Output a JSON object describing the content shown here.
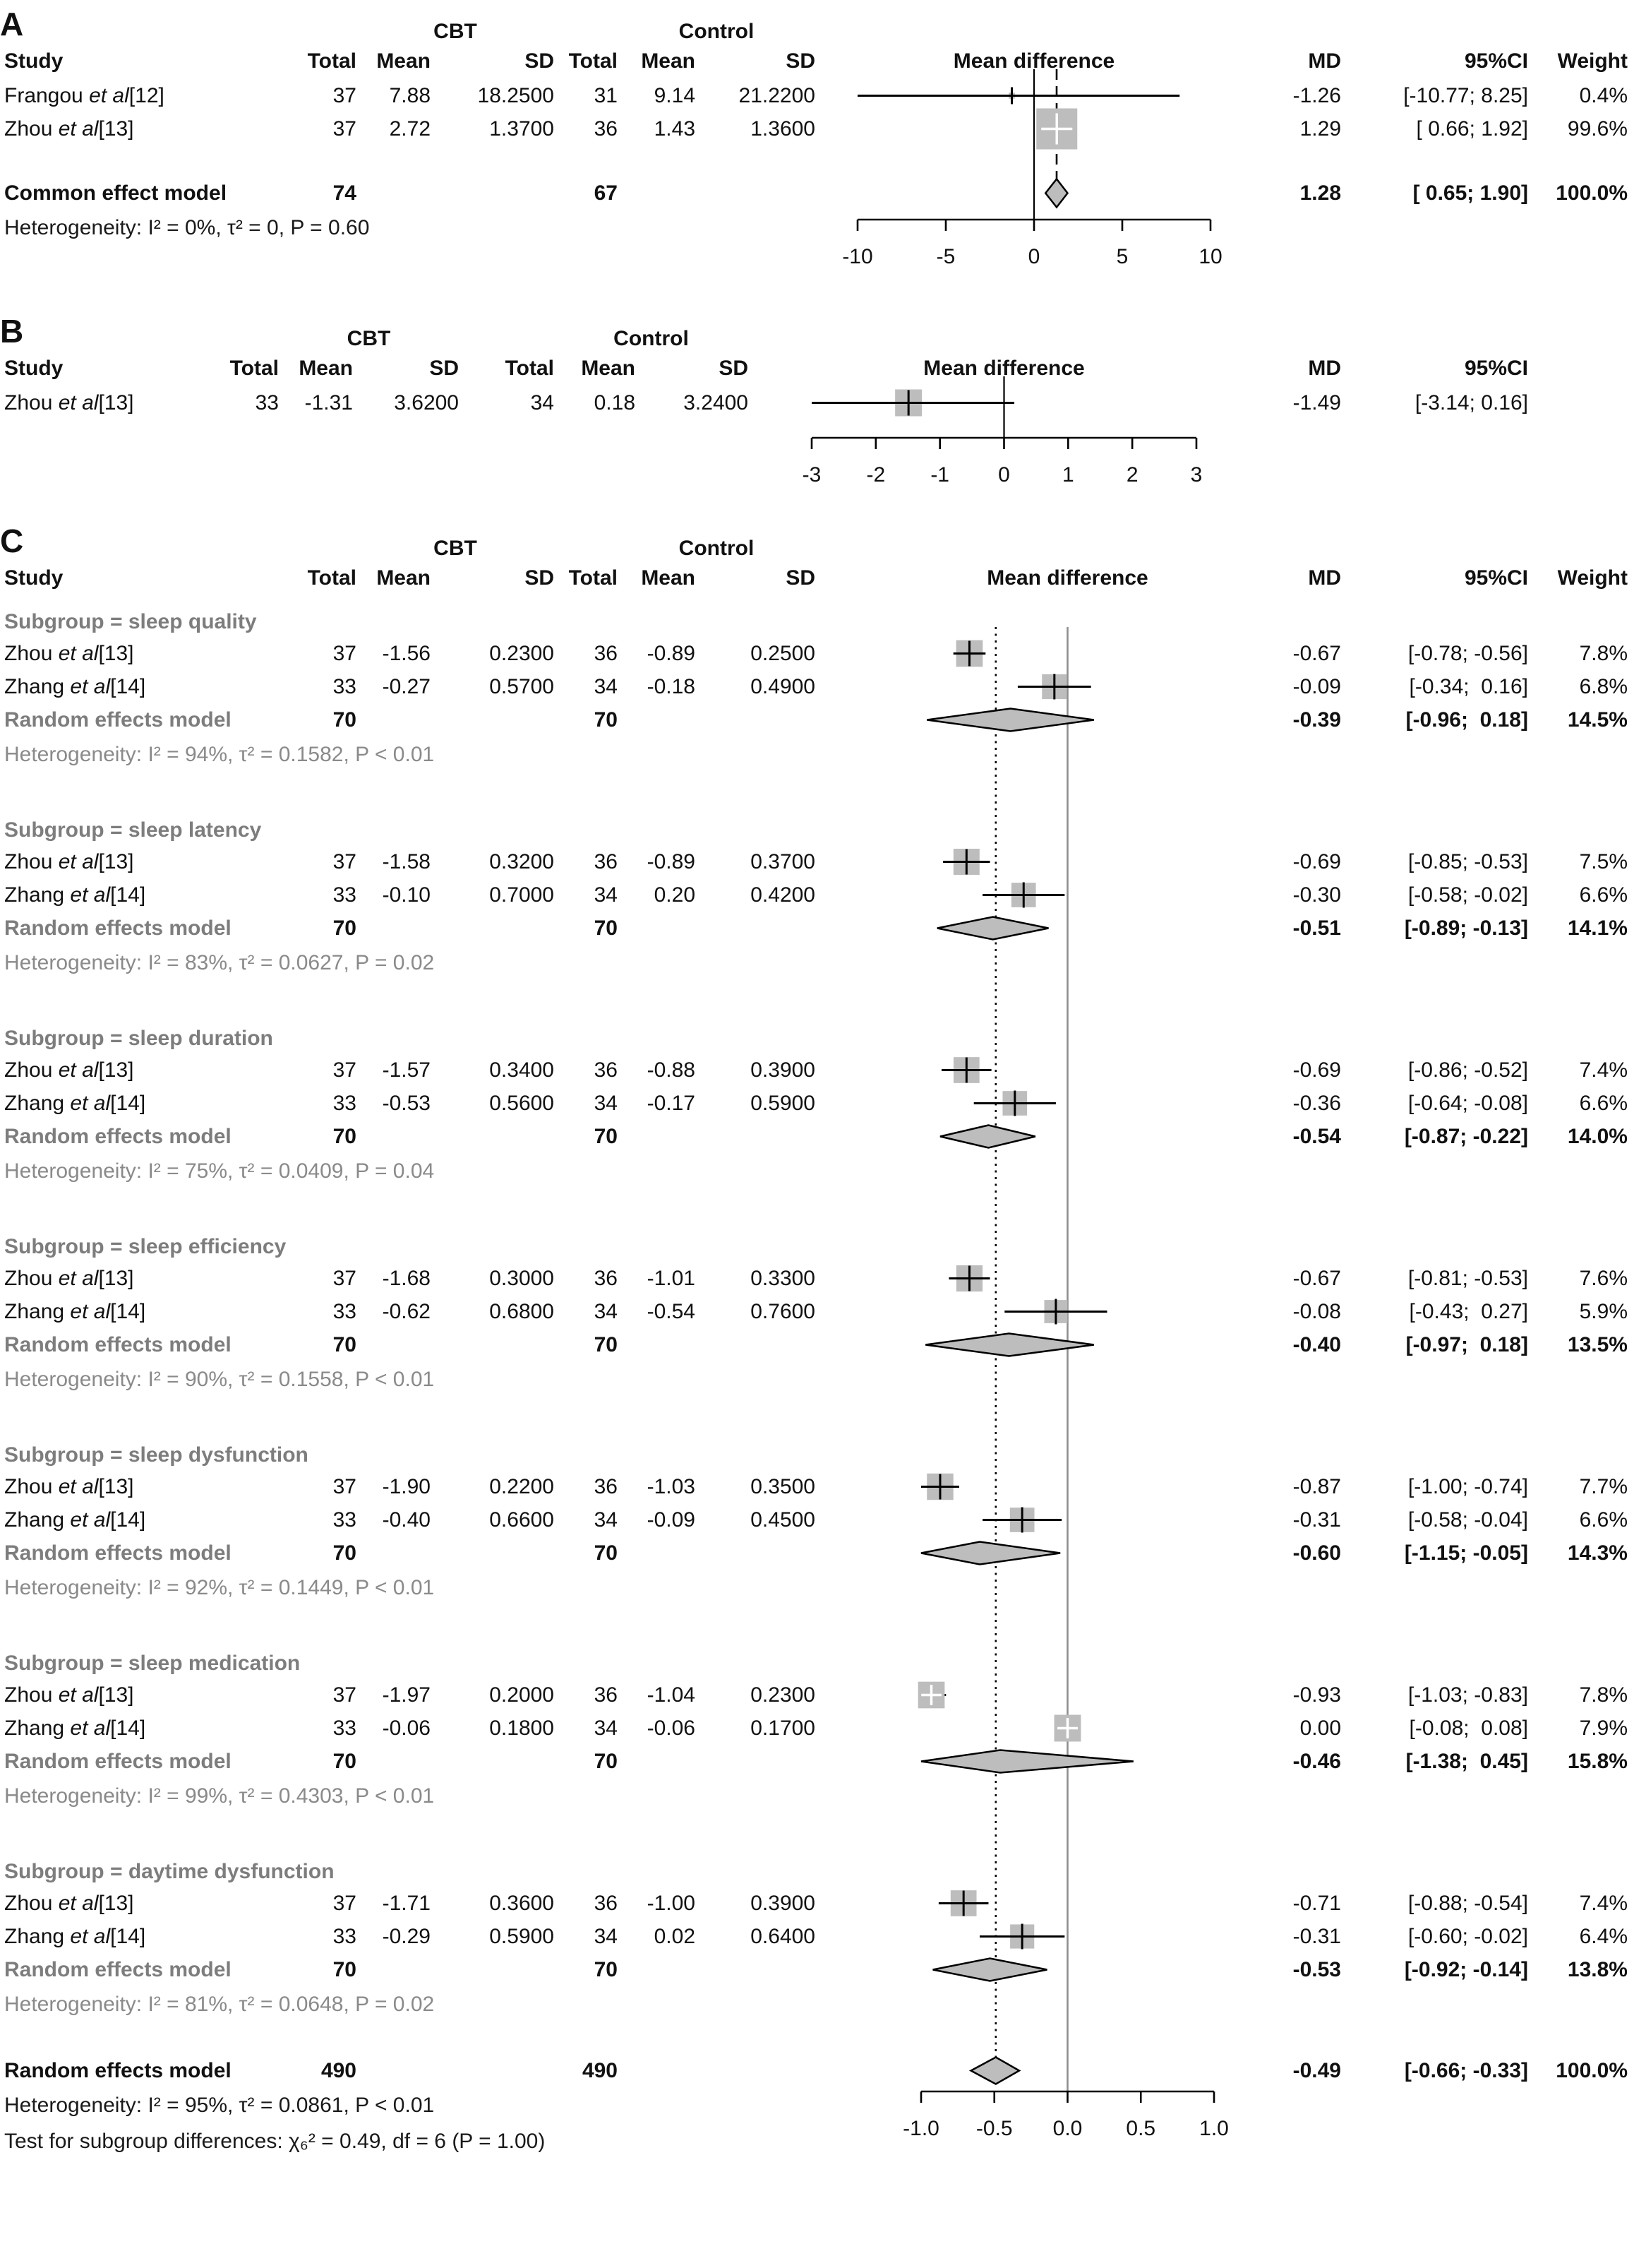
{
  "groups": [
    "CBT",
    "Control"
  ],
  "columns": {
    "study": "Study",
    "total": "Total",
    "mean": "Mean",
    "sd": "SD",
    "mean_difference": "Mean difference",
    "md": "MD",
    "ci": "95%CI",
    "weight": "Weight"
  },
  "colors": {
    "square": "#bdbdbd",
    "diamond": "#bdbdbd",
    "ci_line": "#000000",
    "zero_line_panel_c": "#8f8f8f",
    "subgroup_text": "#7d7d7d",
    "heterogeneity_text": "#8a8a8a"
  },
  "chart_data": [
    {
      "type": "forest",
      "panel": "A",
      "panel_label": "A",
      "has_weight": true,
      "axis": {
        "min": -10,
        "max": 10,
        "zero": 0,
        "ticks": [
          {
            "v": -10,
            "t": "-10"
          },
          {
            "v": -5,
            "t": "-5"
          },
          {
            "v": 0,
            "t": "0"
          },
          {
            "v": 5,
            "t": "5"
          },
          {
            "v": 10,
            "t": "10"
          }
        ],
        "overall_line": {
          "value": 1.28,
          "style": "dashed"
        }
      },
      "rows": [
        {
          "kind": "study",
          "pre": "Frangou ",
          "it": "et al",
          "post": "[12]",
          "n1": "37",
          "mean1": "7.88",
          "sd1": "18.2500",
          "n2": "31",
          "mean2": "9.14",
          "sd2": "21.2200",
          "md": -1.26,
          "lo": -10.77,
          "hi": 8.25,
          "md_text": "-1.26",
          "ci_text": "[-10.77; 8.25]",
          "weight": 0.4,
          "weight_text": "0.4%"
        },
        {
          "kind": "study",
          "pre": "Zhou ",
          "it": "et al",
          "post": "[13]",
          "n1": "37",
          "mean1": "2.72",
          "sd1": "1.3700",
          "n2": "36",
          "mean2": "1.43",
          "sd2": "1.3600",
          "md": 1.29,
          "lo": 0.66,
          "hi": 1.92,
          "md_text": "1.29",
          "ci_text": "[ 0.66; 1.92]",
          "weight": 99.6,
          "weight_text": "99.6%"
        },
        {
          "kind": "gap"
        },
        {
          "kind": "summary",
          "final": true,
          "label": "Common effect model",
          "n1": "74",
          "n2": "67",
          "md": 1.28,
          "lo": 0.65,
          "hi": 1.9,
          "md_text": "1.28",
          "ci_text": "[ 0.65; 1.90]",
          "weight_text": "100.0%"
        },
        {
          "kind": "het",
          "final": true,
          "text": "Heterogeneity: I² = 0%, τ² = 0, P = 0.60"
        }
      ]
    },
    {
      "type": "forest",
      "panel": "B",
      "panel_label": "B",
      "has_weight": false,
      "axis": {
        "min": -3,
        "max": 3,
        "zero": 0,
        "ticks": [
          {
            "v": -3,
            "t": "-3"
          },
          {
            "v": -2,
            "t": "-2"
          },
          {
            "v": -1,
            "t": "-1"
          },
          {
            "v": 0,
            "t": "0"
          },
          {
            "v": 1,
            "t": "1"
          },
          {
            "v": 2,
            "t": "2"
          },
          {
            "v": 3,
            "t": "3"
          }
        ],
        "overall_line": null
      },
      "rows": [
        {
          "kind": "study",
          "pre": "Zhou ",
          "it": "et al",
          "post": "[13]",
          "n1": "33",
          "mean1": "-1.31",
          "sd1": "3.6200",
          "n2": "34",
          "mean2": "0.18",
          "sd2": "3.2400",
          "md": -1.49,
          "lo": -3.14,
          "hi": 0.16,
          "md_text": "-1.49",
          "ci_text": "[-3.14; 0.16]",
          "weight": null,
          "weight_text": ""
        },
        {
          "kind": "axisgap"
        }
      ]
    },
    {
      "type": "forest",
      "panel": "C",
      "panel_label": "C",
      "has_weight": true,
      "axis": {
        "min": -1,
        "max": 1,
        "zero": 0,
        "ticks": [
          {
            "v": -1,
            "t": "-1.0"
          },
          {
            "v": -0.5,
            "t": "-0.5"
          },
          {
            "v": 0,
            "t": "0.0"
          },
          {
            "v": 0.5,
            "t": "0.5"
          },
          {
            "v": 1,
            "t": "1.0"
          }
        ],
        "overall_line": {
          "value": -0.49,
          "style": "dotted"
        }
      },
      "rows": [
        {
          "kind": "subgroup",
          "label": "Subgroup = sleep quality"
        },
        {
          "kind": "study",
          "pre": "Zhou ",
          "it": "et al",
          "post": "[13]",
          "n1": "37",
          "mean1": "-1.56",
          "sd1": "0.2300",
          "n2": "36",
          "mean2": "-0.89",
          "sd2": "0.2500",
          "md": -0.67,
          "lo": -0.78,
          "hi": -0.56,
          "md_text": "-0.67",
          "ci_text": "[-0.78; -0.56]",
          "weight": 7.8,
          "weight_text": "7.8%"
        },
        {
          "kind": "study",
          "pre": "Zhang ",
          "it": "et al",
          "post": "[14]",
          "n1": "33",
          "mean1": "-0.27",
          "sd1": "0.5700",
          "n2": "34",
          "mean2": "-0.18",
          "sd2": "0.4900",
          "md": -0.09,
          "lo": -0.34,
          "hi": 0.16,
          "md_text": "-0.09",
          "ci_text": "[-0.34;  0.16]",
          "weight": 6.8,
          "weight_text": "6.8%"
        },
        {
          "kind": "summary",
          "final": false,
          "label": "Random effects model",
          "n1": "70",
          "n2": "70",
          "md": -0.39,
          "lo": -0.96,
          "hi": 0.18,
          "md_text": "-0.39",
          "ci_text": "[-0.96;  0.18]",
          "weight_text": "14.5%"
        },
        {
          "kind": "het",
          "final": false,
          "text": "Heterogeneity: I² = 94%, τ² = 0.1582, P < 0.01"
        },
        {
          "kind": "gap"
        },
        {
          "kind": "subgroup",
          "label": "Subgroup = sleep latency"
        },
        {
          "kind": "study",
          "pre": "Zhou ",
          "it": "et al",
          "post": "[13]",
          "n1": "37",
          "mean1": "-1.58",
          "sd1": "0.3200",
          "n2": "36",
          "mean2": "-0.89",
          "sd2": "0.3700",
          "md": -0.69,
          "lo": -0.85,
          "hi": -0.53,
          "md_text": "-0.69",
          "ci_text": "[-0.85; -0.53]",
          "weight": 7.5,
          "weight_text": "7.5%"
        },
        {
          "kind": "study",
          "pre": "Zhang ",
          "it": "et al",
          "post": "[14]",
          "n1": "33",
          "mean1": "-0.10",
          "sd1": "0.7000",
          "n2": "34",
          "mean2": "0.20",
          "sd2": "0.4200",
          "md": -0.3,
          "lo": -0.58,
          "hi": -0.02,
          "md_text": "-0.30",
          "ci_text": "[-0.58; -0.02]",
          "weight": 6.6,
          "weight_text": "6.6%"
        },
        {
          "kind": "summary",
          "final": false,
          "label": "Random effects model",
          "n1": "70",
          "n2": "70",
          "md": -0.51,
          "lo": -0.89,
          "hi": -0.13,
          "md_text": "-0.51",
          "ci_text": "[-0.89; -0.13]",
          "weight_text": "14.1%"
        },
        {
          "kind": "het",
          "final": false,
          "text": "Heterogeneity: I² = 83%, τ² = 0.0627, P = 0.02"
        },
        {
          "kind": "gap"
        },
        {
          "kind": "subgroup",
          "label": "Subgroup = sleep duration"
        },
        {
          "kind": "study",
          "pre": "Zhou ",
          "it": "et al",
          "post": "[13]",
          "n1": "37",
          "mean1": "-1.57",
          "sd1": "0.3400",
          "n2": "36",
          "mean2": "-0.88",
          "sd2": "0.3900",
          "md": -0.69,
          "lo": -0.86,
          "hi": -0.52,
          "md_text": "-0.69",
          "ci_text": "[-0.86; -0.52]",
          "weight": 7.4,
          "weight_text": "7.4%"
        },
        {
          "kind": "study",
          "pre": "Zhang ",
          "it": "et al",
          "post": "[14]",
          "n1": "33",
          "mean1": "-0.53",
          "sd1": "0.5600",
          "n2": "34",
          "mean2": "-0.17",
          "sd2": "0.5900",
          "md": -0.36,
          "lo": -0.64,
          "hi": -0.08,
          "md_text": "-0.36",
          "ci_text": "[-0.64; -0.08]",
          "weight": 6.6,
          "weight_text": "6.6%"
        },
        {
          "kind": "summary",
          "final": false,
          "label": "Random effects model",
          "n1": "70",
          "n2": "70",
          "md": -0.54,
          "lo": -0.87,
          "hi": -0.22,
          "md_text": "-0.54",
          "ci_text": "[-0.87; -0.22]",
          "weight_text": "14.0%"
        },
        {
          "kind": "het",
          "final": false,
          "text": "Heterogeneity: I² = 75%, τ² = 0.0409, P = 0.04"
        },
        {
          "kind": "gap"
        },
        {
          "kind": "subgroup",
          "label": "Subgroup = sleep efficiency"
        },
        {
          "kind": "study",
          "pre": "Zhou ",
          "it": "et al",
          "post": "[13]",
          "n1": "37",
          "mean1": "-1.68",
          "sd1": "0.3000",
          "n2": "36",
          "mean2": "-1.01",
          "sd2": "0.3300",
          "md": -0.67,
          "lo": -0.81,
          "hi": -0.53,
          "md_text": "-0.67",
          "ci_text": "[-0.81; -0.53]",
          "weight": 7.6,
          "weight_text": "7.6%"
        },
        {
          "kind": "study",
          "pre": "Zhang ",
          "it": "et al",
          "post": "[14]",
          "n1": "33",
          "mean1": "-0.62",
          "sd1": "0.6800",
          "n2": "34",
          "mean2": "-0.54",
          "sd2": "0.7600",
          "md": -0.08,
          "lo": -0.43,
          "hi": 0.27,
          "md_text": "-0.08",
          "ci_text": "[-0.43;  0.27]",
          "weight": 5.9,
          "weight_text": "5.9%"
        },
        {
          "kind": "summary",
          "final": false,
          "label": "Random effects model",
          "n1": "70",
          "n2": "70",
          "md": -0.4,
          "lo": -0.97,
          "hi": 0.18,
          "md_text": "-0.40",
          "ci_text": "[-0.97;  0.18]",
          "weight_text": "13.5%"
        },
        {
          "kind": "het",
          "final": false,
          "text": "Heterogeneity: I² = 90%, τ² = 0.1558, P < 0.01"
        },
        {
          "kind": "gap"
        },
        {
          "kind": "subgroup",
          "label": "Subgroup = sleep dysfunction"
        },
        {
          "kind": "study",
          "pre": "Zhou ",
          "it": "et al",
          "post": "[13]",
          "n1": "37",
          "mean1": "-1.90",
          "sd1": "0.2200",
          "n2": "36",
          "mean2": "-1.03",
          "sd2": "0.3500",
          "md": -0.87,
          "lo": -1.0,
          "hi": -0.74,
          "md_text": "-0.87",
          "ci_text": "[-1.00; -0.74]",
          "weight": 7.7,
          "weight_text": "7.7%"
        },
        {
          "kind": "study",
          "pre": "Zhang ",
          "it": "et al",
          "post": "[14]",
          "n1": "33",
          "mean1": "-0.40",
          "sd1": "0.6600",
          "n2": "34",
          "mean2": "-0.09",
          "sd2": "0.4500",
          "md": -0.31,
          "lo": -0.58,
          "hi": -0.04,
          "md_text": "-0.31",
          "ci_text": "[-0.58; -0.04]",
          "weight": 6.6,
          "weight_text": "6.6%"
        },
        {
          "kind": "summary",
          "final": false,
          "label": "Random effects model",
          "n1": "70",
          "n2": "70",
          "md": -0.6,
          "lo": -1.15,
          "hi": -0.05,
          "md_text": "-0.60",
          "ci_text": "[-1.15; -0.05]",
          "weight_text": "14.3%"
        },
        {
          "kind": "het",
          "final": false,
          "text": "Heterogeneity: I² = 92%, τ² = 0.1449, P < 0.01"
        },
        {
          "kind": "gap"
        },
        {
          "kind": "subgroup",
          "label": "Subgroup = sleep medication"
        },
        {
          "kind": "study",
          "pre": "Zhou ",
          "it": "et al",
          "post": "[13]",
          "n1": "37",
          "mean1": "-1.97",
          "sd1": "0.2000",
          "n2": "36",
          "mean2": "-1.04",
          "sd2": "0.2300",
          "md": -0.93,
          "lo": -1.03,
          "hi": -0.83,
          "md_text": "-0.93",
          "ci_text": "[-1.03; -0.83]",
          "weight": 7.8,
          "weight_text": "7.8%"
        },
        {
          "kind": "study",
          "pre": "Zhang ",
          "it": "et al",
          "post": "[14]",
          "n1": "33",
          "mean1": "-0.06",
          "sd1": "0.1800",
          "n2": "34",
          "mean2": "-0.06",
          "sd2": "0.1700",
          "md": 0.0,
          "lo": -0.08,
          "hi": 0.08,
          "md_text": "0.00",
          "ci_text": "[-0.08;  0.08]",
          "weight": 7.9,
          "weight_text": "7.9%"
        },
        {
          "kind": "summary",
          "final": false,
          "label": "Random effects model",
          "n1": "70",
          "n2": "70",
          "md": -0.46,
          "lo": -1.38,
          "hi": 0.45,
          "md_text": "-0.46",
          "ci_text": "[-1.38;  0.45]",
          "weight_text": "15.8%"
        },
        {
          "kind": "het",
          "final": false,
          "text": "Heterogeneity: I² = 99%, τ² = 0.4303, P < 0.01"
        },
        {
          "kind": "gap"
        },
        {
          "kind": "subgroup",
          "label": "Subgroup = daytime dysfunction"
        },
        {
          "kind": "study",
          "pre": "Zhou ",
          "it": "et al",
          "post": "[13]",
          "n1": "37",
          "mean1": "-1.71",
          "sd1": "0.3600",
          "n2": "36",
          "mean2": "-1.00",
          "sd2": "0.3900",
          "md": -0.71,
          "lo": -0.88,
          "hi": -0.54,
          "md_text": "-0.71",
          "ci_text": "[-0.88; -0.54]",
          "weight": 7.4,
          "weight_text": "7.4%"
        },
        {
          "kind": "study",
          "pre": "Zhang ",
          "it": "et al",
          "post": "[14]",
          "n1": "33",
          "mean1": "-0.29",
          "sd1": "0.5900",
          "n2": "34",
          "mean2": "0.02",
          "sd2": "0.6400",
          "md": -0.31,
          "lo": -0.6,
          "hi": -0.02,
          "md_text": "-0.31",
          "ci_text": "[-0.60; -0.02]",
          "weight": 6.4,
          "weight_text": "6.4%"
        },
        {
          "kind": "summary",
          "final": false,
          "label": "Random effects model",
          "n1": "70",
          "n2": "70",
          "md": -0.53,
          "lo": -0.92,
          "hi": -0.14,
          "md_text": "-0.53",
          "ci_text": "[-0.92; -0.14]",
          "weight_text": "13.8%"
        },
        {
          "kind": "het",
          "final": false,
          "text": "Heterogeneity: I² = 81%, τ² = 0.0648, P = 0.02"
        },
        {
          "kind": "gap"
        },
        {
          "kind": "summary",
          "final": true,
          "label": "Random effects model",
          "n1": "490",
          "n2": "490",
          "md": -0.49,
          "lo": -0.66,
          "hi": -0.33,
          "md_text": "-0.49",
          "ci_text": "[-0.66; -0.33]",
          "weight_text": "100.0%"
        },
        {
          "kind": "het",
          "final": true,
          "text": "Heterogeneity: I² = 95%, τ² = 0.0861, P < 0.01"
        },
        {
          "kind": "test",
          "text": "Test for subgroup differences: χ₆² = 0.49, df = 6 (P = 1.00)"
        }
      ]
    }
  ]
}
